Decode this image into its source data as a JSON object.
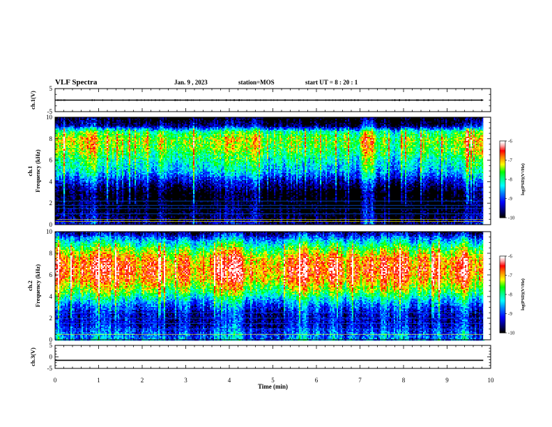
{
  "header": {
    "title": "VLF Spectra",
    "date": "Jan. 9 , 2023",
    "station": "station=MOS",
    "start_ut": "start UT =  8 : 20 : 1"
  },
  "colors": {
    "spectrogram_scale": [
      "#000000",
      "#000080",
      "#0000ff",
      "#0080ff",
      "#00ffff",
      "#00ff80",
      "#00ff00",
      "#ffff00",
      "#ff8000",
      "#ff0000",
      "#ffb0b0",
      "#ffffff"
    ]
  },
  "chart_data": [
    {
      "type": "line",
      "name": "ch1-waveform",
      "ylabel": "ch.1(V)",
      "ylim": [
        -5,
        5
      ],
      "yticks": [
        "5",
        "-5"
      ],
      "x": [
        0,
        9.83
      ],
      "y": [
        0,
        0
      ]
    },
    {
      "type": "heatmap",
      "name": "ch1-spectrogram",
      "ylabel": "ch.1 Frequency (kHz)",
      "ylim": [
        0,
        10
      ],
      "xlim": [
        0,
        10
      ],
      "yticks": [
        "0",
        "2",
        "4",
        "6",
        "8",
        "10"
      ],
      "data_end_min": 9.83,
      "colorbar": {
        "label": "log(PSD)(V²/Hz)",
        "range": [
          -10,
          -6
        ],
        "ticks": [
          "-6",
          "-7",
          "-8",
          "-9",
          "-10"
        ]
      },
      "profile": {
        "freq_khz": [
          0,
          0.5,
          1.0,
          2.0,
          3.0,
          4.0,
          5.0,
          6.0,
          7.0,
          8.0,
          8.7,
          9.3,
          10.0
        ],
        "log_psd": [
          -9.4,
          -9.6,
          -9.8,
          -10,
          -10,
          -9.3,
          -8.4,
          -8.0,
          -7.5,
          -7.3,
          -7.8,
          -9.6,
          -10
        ]
      },
      "lines_khz": [
        0.3,
        0.5,
        1.0,
        1.5,
        1.8,
        2.2
      ]
    },
    {
      "type": "heatmap",
      "name": "ch2-spectrogram",
      "ylabel": "ch.2 Frequency (kHz)",
      "ylim": [
        0,
        10
      ],
      "xlim": [
        0,
        10
      ],
      "yticks": [
        "0",
        "2",
        "4",
        "6",
        "8",
        "10"
      ],
      "data_end_min": 9.83,
      "colorbar": {
        "label": "log(PSD)(V²/Hz)",
        "range": [
          -10,
          -6
        ],
        "ticks": [
          "-6",
          "-7",
          "-8",
          "-9",
          "-10"
        ]
      },
      "profile": {
        "freq_khz": [
          0,
          0.5,
          1.5,
          2.5,
          3.5,
          4.5,
          5.5,
          6.5,
          7.5,
          8.5,
          9.3,
          10.0
        ],
        "log_psd": [
          -8.6,
          -8.8,
          -9.3,
          -9.3,
          -8.6,
          -7.6,
          -6.9,
          -6.6,
          -6.8,
          -7.6,
          -8.5,
          -9.6
        ]
      },
      "lines_khz": [
        0.5,
        1.0,
        1.5,
        2.0,
        2.5
      ]
    },
    {
      "type": "line",
      "name": "ch3-waveform",
      "ylabel": "ch.3(V)",
      "ylim": [
        -5,
        5
      ],
      "yticks": [
        "5",
        "0",
        "-5"
      ],
      "xlabel": "Time (min)",
      "xticks": [
        "0",
        "1",
        "2",
        "3",
        "4",
        "5",
        "6",
        "7",
        "8",
        "9",
        "10"
      ],
      "x": [
        0,
        9.83
      ],
      "y": [
        -1.5,
        -1.5
      ]
    }
  ]
}
